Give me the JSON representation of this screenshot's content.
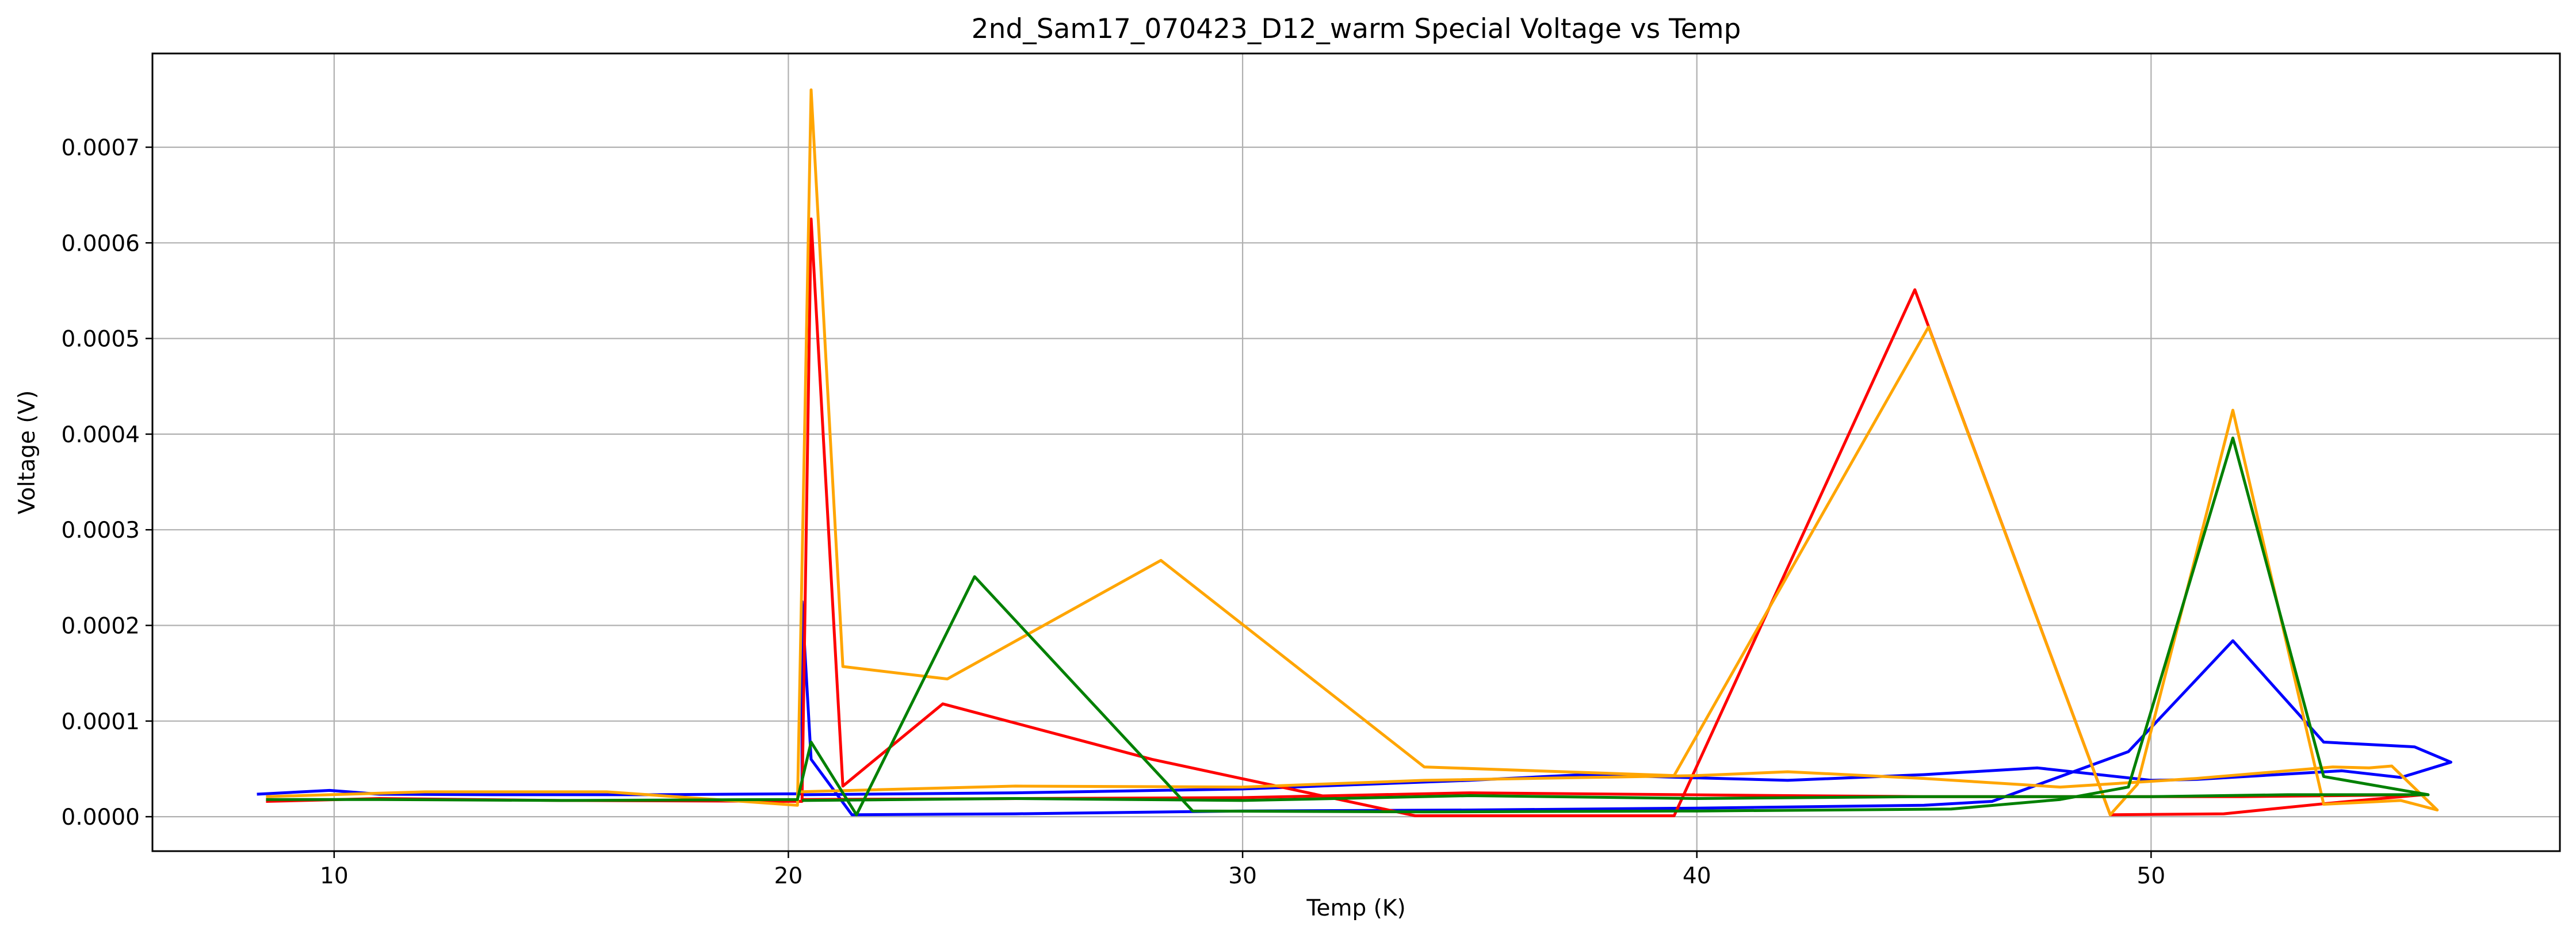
{
  "chart_data": {
    "type": "line",
    "title": "2nd_Sam17_070423_D12_warm Special Voltage vs Temp",
    "xlabel": "Temp (K)",
    "ylabel": "Voltage (V)",
    "xlim": [
      6.0,
      59.0
    ],
    "ylim": [
      -3.6e-05,
      0.000798
    ],
    "xticks": [
      10,
      20,
      30,
      40,
      50
    ],
    "xtick_labels": [
      "10",
      "20",
      "30",
      "40",
      "50"
    ],
    "yticks": [
      0.0,
      0.0001,
      0.0002,
      0.0003,
      0.0004,
      0.0005,
      0.0006,
      0.0007
    ],
    "ytick_labels": [
      "0.0000",
      "0.0001",
      "0.0002",
      "0.0003",
      "0.0004",
      "0.0005",
      "0.0006",
      "0.0007"
    ],
    "grid": true,
    "legend": "none",
    "series": [
      {
        "color": "#0000ff",
        "x": [
          8.3,
          9.9,
          11.0,
          13.5,
          17.0,
          20.3,
          20.3,
          20.5,
          21.4,
          25.0,
          30.0,
          35.0,
          40.0,
          45.0,
          46.5,
          49.5,
          51.8,
          53.8,
          55.8,
          56.6,
          55.5,
          54.2,
          51.0,
          50.0,
          47.5,
          45.0,
          42.0,
          37.5,
          35.0,
          30.0,
          25.0,
          20.3
        ],
        "y": [
          2.35e-05,
          2.75e-05,
          2.35e-05,
          2.3e-05,
          2.3e-05,
          2.4e-05,
          0.000225,
          6e-05,
          2e-06,
          3e-06,
          6e-06,
          7e-06,
          9e-06,
          1.2e-05,
          1.6e-05,
          6.8e-05,
          0.000184,
          7.8e-05,
          7.3e-05,
          5.7e-05,
          4.1e-05,
          4.8e-05,
          3.9e-05,
          3.8e-05,
          5.1e-05,
          4.4e-05,
          3.8e-05,
          4.4e-05,
          3.8e-05,
          2.9e-05,
          2.5e-05,
          2.3e-05
        ]
      },
      {
        "color": "#ff0000",
        "x": [
          8.5,
          11.0,
          15.0,
          20.3,
          20.5,
          21.2,
          23.4,
          28.0,
          33.8,
          39.5,
          44.8,
          49.1,
          51.6,
          53.9,
          56.0,
          52.0,
          49.0,
          45.0,
          42.0,
          35.0,
          30.0,
          20.3
        ],
        "y": [
          1.6e-05,
          1.9e-05,
          1.7e-05,
          1.6e-05,
          0.000625,
          3.2e-05,
          0.000118,
          6e-05,
          1e-06,
          1e-06,
          0.000551,
          2e-06,
          3e-06,
          1.4e-05,
          2.3e-05,
          2.1e-05,
          2.1e-05,
          2.1e-05,
          2.2e-05,
          2.5e-05,
          2e-05,
          1.8e-05
        ]
      },
      {
        "color": "#ffa500",
        "x": [
          8.5,
          12.0,
          16.0,
          20.2,
          20.5,
          21.2,
          23.5,
          28.2,
          34.0,
          39.5,
          45.1,
          49.1,
          49.7,
          51.8,
          53.8,
          55.5,
          56.3,
          55.3,
          54.8,
          54.0,
          51.0,
          48.0,
          45.0,
          42.0,
          40.0,
          34.0,
          30.0,
          25.0,
          20.2
        ],
        "y": [
          2.1e-05,
          2.6e-05,
          2.6e-05,
          1.2e-05,
          0.00076,
          0.000157,
          0.000144,
          0.000268,
          5.2e-05,
          4.3e-05,
          0.000512,
          2e-06,
          3.4e-05,
          0.000425,
          1.3e-05,
          1.7e-05,
          7e-06,
          5.3e-05,
          5.1e-05,
          5.2e-05,
          4e-05,
          3.1e-05,
          4e-05,
          4.7e-05,
          4.3e-05,
          3.8e-05,
          3.1e-05,
          3.2e-05,
          2.6e-05
        ]
      },
      {
        "color": "#008000",
        "x": [
          8.5,
          11.0,
          15.0,
          20.2,
          20.5,
          21.5,
          24.1,
          28.9,
          34.0,
          40.0,
          45.6,
          48.0,
          49.5,
          51.8,
          53.8,
          56.1,
          53.0,
          50.0,
          45.0,
          40.0,
          35.0,
          30.0,
          25.0,
          20.3
        ],
        "y": [
          1.8e-05,
          1.8e-05,
          1.7e-05,
          1.8e-05,
          7.8e-05,
          2e-06,
          0.000251,
          6e-06,
          5e-06,
          6e-06,
          8e-06,
          1.8e-05,
          3.1e-05,
          0.000396,
          4.2e-05,
          2.3e-05,
          2.3e-05,
          2.1e-05,
          2.1e-05,
          1.9e-05,
          2.2e-05,
          1.7e-05,
          1.9e-05,
          1.7e-05
        ]
      }
    ]
  }
}
